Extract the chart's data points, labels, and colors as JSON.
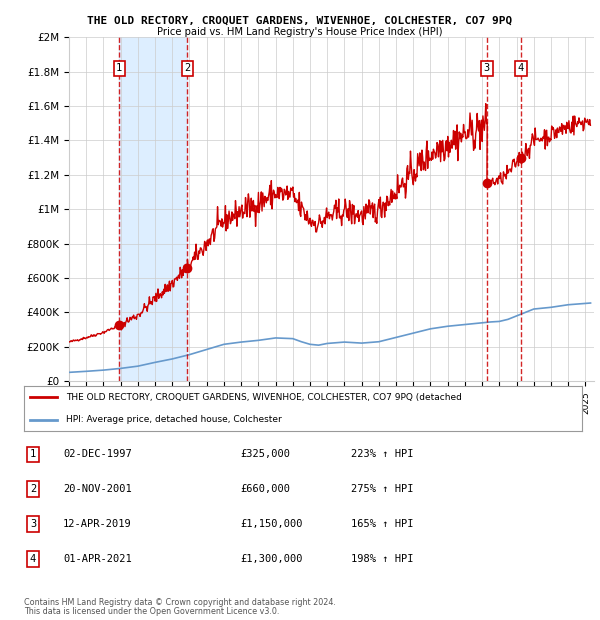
{
  "title": "THE OLD RECTORY, CROQUET GARDENS, WIVENHOE, COLCHESTER, CO7 9PQ",
  "subtitle": "Price paid vs. HM Land Registry's House Price Index (HPI)",
  "transactions": [
    {
      "num": 1,
      "date_label": "02-DEC-1997",
      "year": 1997.92,
      "price": 325000,
      "hpi_pct": "223% ↑ HPI"
    },
    {
      "num": 2,
      "date_label": "20-NOV-2001",
      "year": 2001.88,
      "price": 660000,
      "hpi_pct": "275% ↑ HPI"
    },
    {
      "num": 3,
      "date_label": "12-APR-2019",
      "year": 2019.28,
      "price": 1150000,
      "hpi_pct": "165% ↑ HPI"
    },
    {
      "num": 4,
      "date_label": "01-APR-2021",
      "year": 2021.25,
      "price": 1300000,
      "hpi_pct": "198% ↑ HPI"
    }
  ],
  "legend_line1": "THE OLD RECTORY, CROQUET GARDENS, WIVENHOE, COLCHESTER, CO7 9PQ (detached",
  "legend_line2": "HPI: Average price, detached house, Colchester",
  "footer1": "Contains HM Land Registry data © Crown copyright and database right 2024.",
  "footer2": "This data is licensed under the Open Government Licence v3.0.",
  "line_color": "#cc0000",
  "hpi_color": "#6699cc",
  "background_color": "#ffffff",
  "shade_color": "#ddeeff",
  "grid_color": "#cccccc",
  "ylim": [
    0,
    2000000
  ],
  "xlim": [
    1995.0,
    2025.5
  ],
  "yticks": [
    0,
    200000,
    400000,
    600000,
    800000,
    1000000,
    1200000,
    1400000,
    1600000,
    1800000,
    2000000
  ],
  "ytick_labels": [
    "£0",
    "£200K",
    "£400K",
    "£600K",
    "£800K",
    "£1M",
    "£1.2M",
    "£1.4M",
    "£1.6M",
    "£1.8M",
    "£2M"
  ],
  "xticks": [
    1995,
    1996,
    1997,
    1998,
    1999,
    2000,
    2001,
    2002,
    2003,
    2004,
    2005,
    2006,
    2007,
    2008,
    2009,
    2010,
    2011,
    2012,
    2013,
    2014,
    2015,
    2016,
    2017,
    2018,
    2019,
    2020,
    2021,
    2022,
    2023,
    2024,
    2025
  ]
}
